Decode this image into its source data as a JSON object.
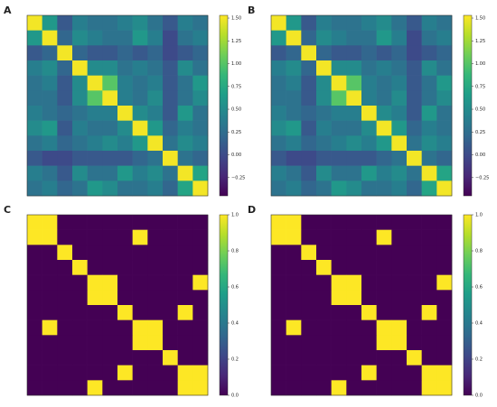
{
  "chart_data": [
    {
      "type": "heatmap",
      "panel": "A",
      "z": [
        [
          1.5,
          0.6,
          0.1,
          0.4,
          0.3,
          0.3,
          0.4,
          0.5,
          0.3,
          0.1,
          0.4,
          0.3
        ],
        [
          0.6,
          1.5,
          0.2,
          0.5,
          0.4,
          0.3,
          0.3,
          0.6,
          0.4,
          0.0,
          0.3,
          0.4
        ],
        [
          0.1,
          0.2,
          1.5,
          0.2,
          0.1,
          0.1,
          0.2,
          0.1,
          0.2,
          0.0,
          0.1,
          0.2
        ],
        [
          0.4,
          0.5,
          0.2,
          1.5,
          0.5,
          0.5,
          0.3,
          0.4,
          0.3,
          0.1,
          0.5,
          0.3
        ],
        [
          0.3,
          0.4,
          0.1,
          0.5,
          1.5,
          1.0,
          0.4,
          0.3,
          0.4,
          0.1,
          0.3,
          0.6
        ],
        [
          0.3,
          0.3,
          0.1,
          0.5,
          1.0,
          1.5,
          0.4,
          0.3,
          0.5,
          0.1,
          0.3,
          0.5
        ],
        [
          0.4,
          0.3,
          0.2,
          0.3,
          0.4,
          0.4,
          1.5,
          0.5,
          0.4,
          0.1,
          0.6,
          0.3
        ],
        [
          0.5,
          0.6,
          0.1,
          0.4,
          0.3,
          0.3,
          0.5,
          1.5,
          0.6,
          0.2,
          0.4,
          0.3
        ],
        [
          0.3,
          0.4,
          0.2,
          0.3,
          0.4,
          0.5,
          0.4,
          0.6,
          1.5,
          0.3,
          0.5,
          0.4
        ],
        [
          0.1,
          0.0,
          0.0,
          0.1,
          0.1,
          0.1,
          0.1,
          0.2,
          0.3,
          1.5,
          0.3,
          0.2
        ],
        [
          0.4,
          0.3,
          0.1,
          0.5,
          0.3,
          0.3,
          0.6,
          0.4,
          0.5,
          0.3,
          1.5,
          0.7
        ],
        [
          0.3,
          0.4,
          0.2,
          0.3,
          0.6,
          0.5,
          0.3,
          0.3,
          0.4,
          0.2,
          0.7,
          1.5
        ]
      ],
      "zlim": [
        -0.45,
        1.53
      ],
      "zticks": [
        {
          "value": 1.5,
          "label": "1.50"
        },
        {
          "value": 1.25,
          "label": "1.25"
        },
        {
          "value": 1,
          "label": "1.00"
        },
        {
          "value": 0.75,
          "label": "0.75"
        },
        {
          "value": 0.5,
          "label": "0.50"
        },
        {
          "value": 0.25,
          "label": "0.25"
        },
        {
          "value": 0,
          "label": "0.00"
        },
        {
          "value": -0.25,
          "label": "−0.25"
        }
      ]
    },
    {
      "type": "heatmap",
      "panel": "B",
      "z": [
        [
          1.5,
          0.6,
          0.1,
          0.4,
          0.3,
          0.3,
          0.4,
          0.5,
          0.3,
          0.1,
          0.4,
          0.3
        ],
        [
          0.6,
          1.5,
          0.2,
          0.5,
          0.4,
          0.3,
          0.3,
          0.6,
          0.4,
          0.0,
          0.3,
          0.4
        ],
        [
          0.1,
          0.2,
          1.5,
          0.2,
          0.1,
          0.1,
          0.2,
          0.1,
          0.2,
          0.0,
          0.1,
          0.2
        ],
        [
          0.4,
          0.5,
          0.2,
          1.5,
          0.5,
          0.5,
          0.3,
          0.4,
          0.3,
          0.1,
          0.5,
          0.3
        ],
        [
          0.3,
          0.4,
          0.1,
          0.5,
          1.5,
          1.0,
          0.4,
          0.3,
          0.4,
          0.1,
          0.3,
          0.6
        ],
        [
          0.3,
          0.3,
          0.1,
          0.5,
          1.0,
          1.5,
          0.4,
          0.3,
          0.5,
          0.1,
          0.3,
          0.5
        ],
        [
          0.4,
          0.3,
          0.2,
          0.3,
          0.4,
          0.4,
          1.5,
          0.5,
          0.4,
          0.1,
          0.6,
          0.3
        ],
        [
          0.5,
          0.6,
          0.1,
          0.4,
          0.3,
          0.3,
          0.5,
          1.5,
          0.6,
          0.2,
          0.4,
          0.3
        ],
        [
          0.3,
          0.4,
          0.2,
          0.3,
          0.4,
          0.5,
          0.4,
          0.6,
          1.5,
          0.3,
          0.5,
          0.4
        ],
        [
          0.1,
          0.0,
          0.0,
          0.1,
          0.1,
          0.1,
          0.1,
          0.2,
          0.3,
          1.5,
          0.3,
          0.2
        ],
        [
          0.4,
          0.3,
          0.1,
          0.5,
          0.3,
          0.3,
          0.6,
          0.4,
          0.5,
          0.3,
          1.5,
          0.7
        ],
        [
          0.3,
          0.4,
          0.2,
          0.3,
          0.6,
          0.5,
          0.3,
          0.3,
          0.4,
          0.2,
          0.7,
          1.5
        ]
      ],
      "zlim": [
        -0.45,
        1.53
      ],
      "zticks": [
        {
          "value": 1.5,
          "label": "1.50"
        },
        {
          "value": 1.25,
          "label": "1.25"
        },
        {
          "value": 1,
          "label": "1.00"
        },
        {
          "value": 0.75,
          "label": "0.75"
        },
        {
          "value": 0.5,
          "label": "0.50"
        },
        {
          "value": 0.25,
          "label": "0.25"
        },
        {
          "value": 0,
          "label": "0.00"
        },
        {
          "value": -0.25,
          "label": "−0.25"
        }
      ]
    },
    {
      "type": "heatmap",
      "panel": "C",
      "z": [
        [
          1,
          1,
          0,
          0,
          0,
          0,
          0,
          0,
          0,
          0,
          0,
          0
        ],
        [
          1,
          1,
          0,
          0,
          0,
          0,
          0,
          1,
          0,
          0,
          0,
          0
        ],
        [
          0,
          0,
          1,
          0,
          0,
          0,
          0,
          0,
          0,
          0,
          0,
          0
        ],
        [
          0,
          0,
          0,
          1,
          0,
          0,
          0,
          0,
          0,
          0,
          0,
          0
        ],
        [
          0,
          0,
          0,
          0,
          1,
          1,
          0,
          0,
          0,
          0,
          0,
          1
        ],
        [
          0,
          0,
          0,
          0,
          1,
          1,
          0,
          0,
          0,
          0,
          0,
          0
        ],
        [
          0,
          0,
          0,
          0,
          0,
          0,
          1,
          0,
          0,
          0,
          1,
          0
        ],
        [
          0,
          1,
          0,
          0,
          0,
          0,
          0,
          1,
          1,
          0,
          0,
          0
        ],
        [
          0,
          0,
          0,
          0,
          0,
          0,
          0,
          1,
          1,
          0,
          0,
          0
        ],
        [
          0,
          0,
          0,
          0,
          0,
          0,
          0,
          0,
          0,
          1,
          0,
          0
        ],
        [
          0,
          0,
          0,
          0,
          0,
          0,
          1,
          0,
          0,
          0,
          1,
          1
        ],
        [
          0,
          0,
          0,
          0,
          1,
          0,
          0,
          0,
          0,
          0,
          1,
          1
        ]
      ],
      "zlim": [
        0,
        1
      ],
      "zticks": [
        {
          "value": 0,
          "label": "0.0"
        },
        {
          "value": 0.2,
          "label": "0.2"
        },
        {
          "value": 0.4,
          "label": "0.4"
        },
        {
          "value": 0.6,
          "label": "0.6"
        },
        {
          "value": 0.8,
          "label": "0.8"
        },
        {
          "value": 1,
          "label": "1.0"
        }
      ]
    },
    {
      "type": "heatmap",
      "panel": "D",
      "z": [
        [
          1,
          1,
          0,
          0,
          0,
          0,
          0,
          0,
          0,
          0,
          0,
          0
        ],
        [
          1,
          1,
          0,
          0,
          0,
          0,
          0,
          1,
          0,
          0,
          0,
          0
        ],
        [
          0,
          0,
          1,
          0,
          0,
          0,
          0,
          0,
          0,
          0,
          0,
          0
        ],
        [
          0,
          0,
          0,
          1,
          0,
          0,
          0,
          0,
          0,
          0,
          0,
          0
        ],
        [
          0,
          0,
          0,
          0,
          1,
          1,
          0,
          0,
          0,
          0,
          0,
          1
        ],
        [
          0,
          0,
          0,
          0,
          1,
          1,
          0,
          0,
          0,
          0,
          0,
          0
        ],
        [
          0,
          0,
          0,
          0,
          0,
          0,
          1,
          0,
          0,
          0,
          1,
          0
        ],
        [
          0,
          1,
          0,
          0,
          0,
          0,
          0,
          1,
          1,
          0,
          0,
          0
        ],
        [
          0,
          0,
          0,
          0,
          0,
          0,
          0,
          1,
          1,
          0,
          0,
          0
        ],
        [
          0,
          0,
          0,
          0,
          0,
          0,
          0,
          0,
          0,
          1,
          0,
          0
        ],
        [
          0,
          0,
          0,
          0,
          0,
          0,
          1,
          0,
          0,
          0,
          1,
          1
        ],
        [
          0,
          0,
          0,
          0,
          1,
          0,
          0,
          0,
          0,
          0,
          1,
          1
        ]
      ],
      "zlim": [
        0,
        1
      ],
      "zticks": [
        {
          "value": 0,
          "label": "0.0"
        },
        {
          "value": 0.2,
          "label": "0.2"
        },
        {
          "value": 0.4,
          "label": "0.4"
        },
        {
          "value": 0.6,
          "label": "0.6"
        },
        {
          "value": 0.8,
          "label": "0.8"
        },
        {
          "value": 1,
          "label": "1.0"
        }
      ]
    }
  ]
}
